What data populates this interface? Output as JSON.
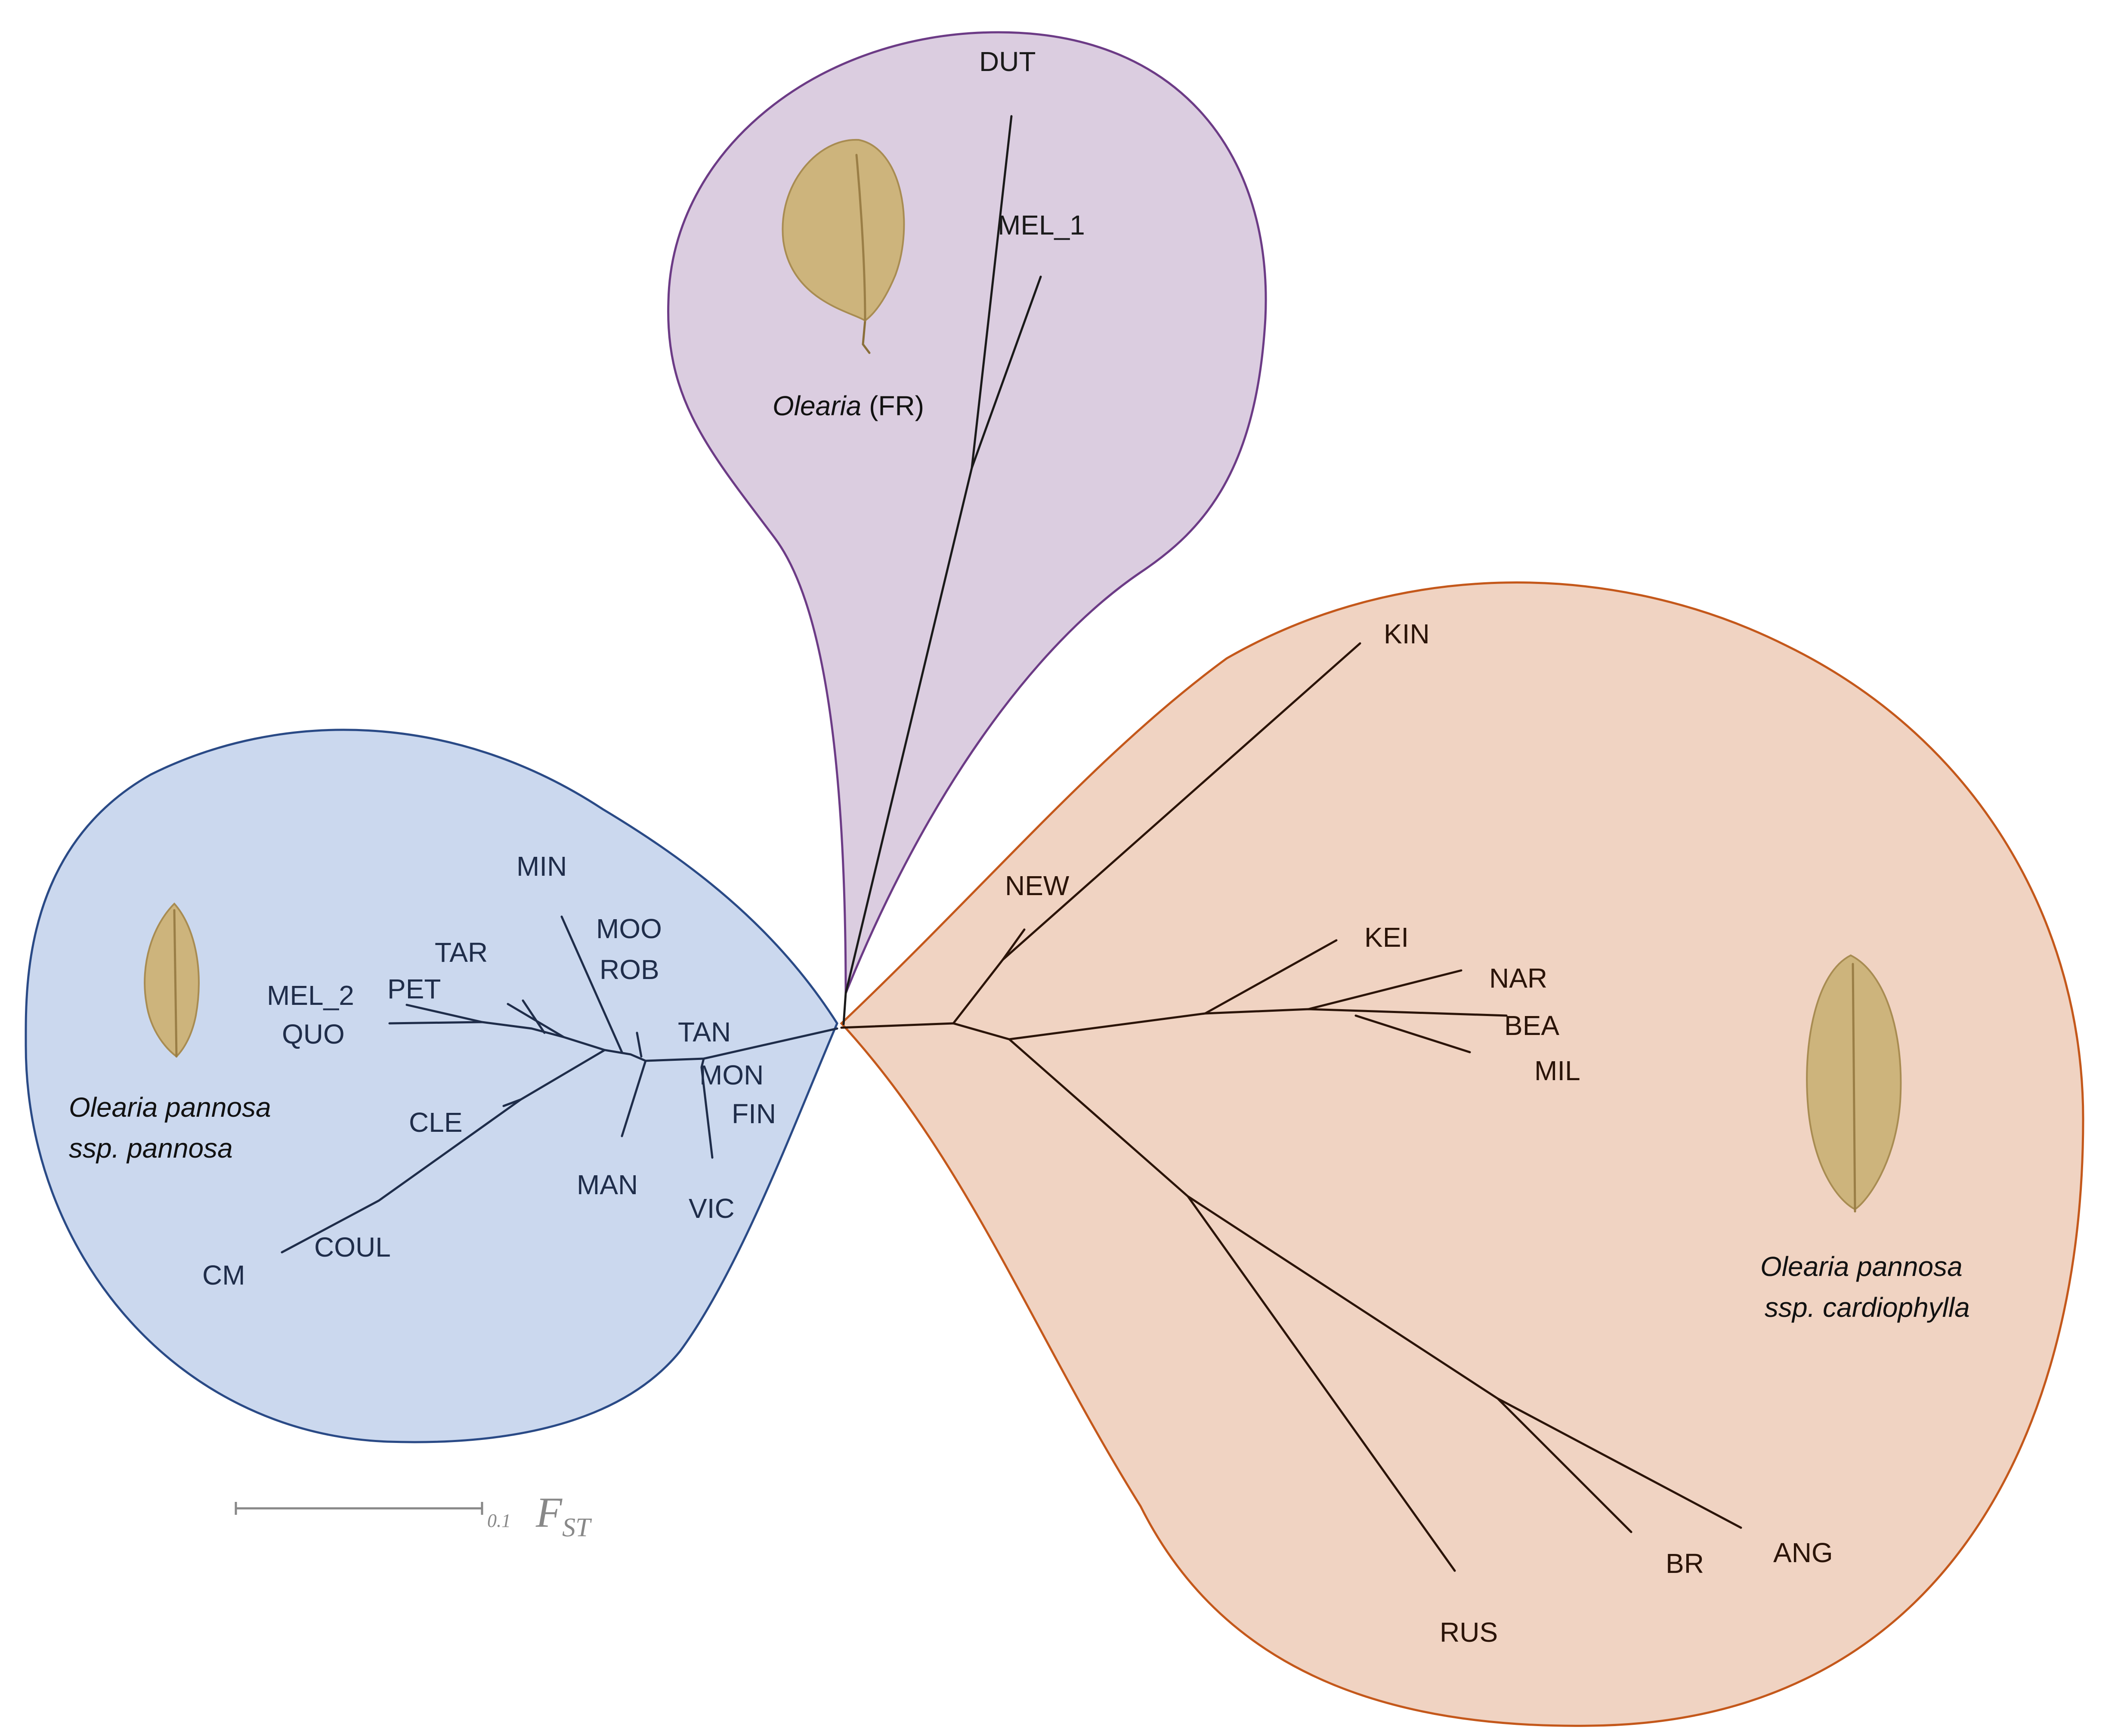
{
  "colors": {
    "purple_fill": "#dbcde0",
    "purple_stroke": "#6c3b86",
    "blue_fill": "#cbd8ee",
    "blue_stroke": "#2a4a86",
    "orange_fill": "#f0d3c2",
    "orange_stroke": "#c4581b",
    "branch_blue": "#1f2d4a",
    "branch_brown": "#2b1408",
    "branch_dark": "#1a1a1a",
    "leaf": "#cdb47c"
  },
  "clades": {
    "fr": {
      "taxon_italic": "Olearia",
      "taxon_suffix": " (FR)",
      "labels": {
        "dut": "DUT",
        "mel_1": "MEL_1"
      }
    },
    "pannosa": {
      "taxon_line1": "Olearia pannosa",
      "taxon_line2": "ssp. pannosa",
      "labels": {
        "min": "MIN",
        "moo": "MOO",
        "rob": "ROB",
        "tar": "TAR",
        "pet": "PET",
        "mel_2": "MEL_2",
        "quo": "QUO",
        "tan": "TAN",
        "mon": "MON",
        "fin": "FIN",
        "cle": "CLE",
        "man": "MAN",
        "vic": "VIC",
        "coul": "COUL",
        "cm": "CM"
      }
    },
    "cardiophylla": {
      "taxon_line1": "Olearia pannosa",
      "taxon_line2": "ssp. cardiophylla",
      "labels": {
        "kin": "KIN",
        "new": "NEW",
        "kei": "KEI",
        "nar": "NAR",
        "bea": "BEA",
        "mil": "MIL",
        "rus": "RUS",
        "br": "BR",
        "ang": "ANG"
      }
    }
  },
  "scale_bar": {
    "value": "0.1",
    "symbol": "F",
    "subscript": "ST"
  }
}
